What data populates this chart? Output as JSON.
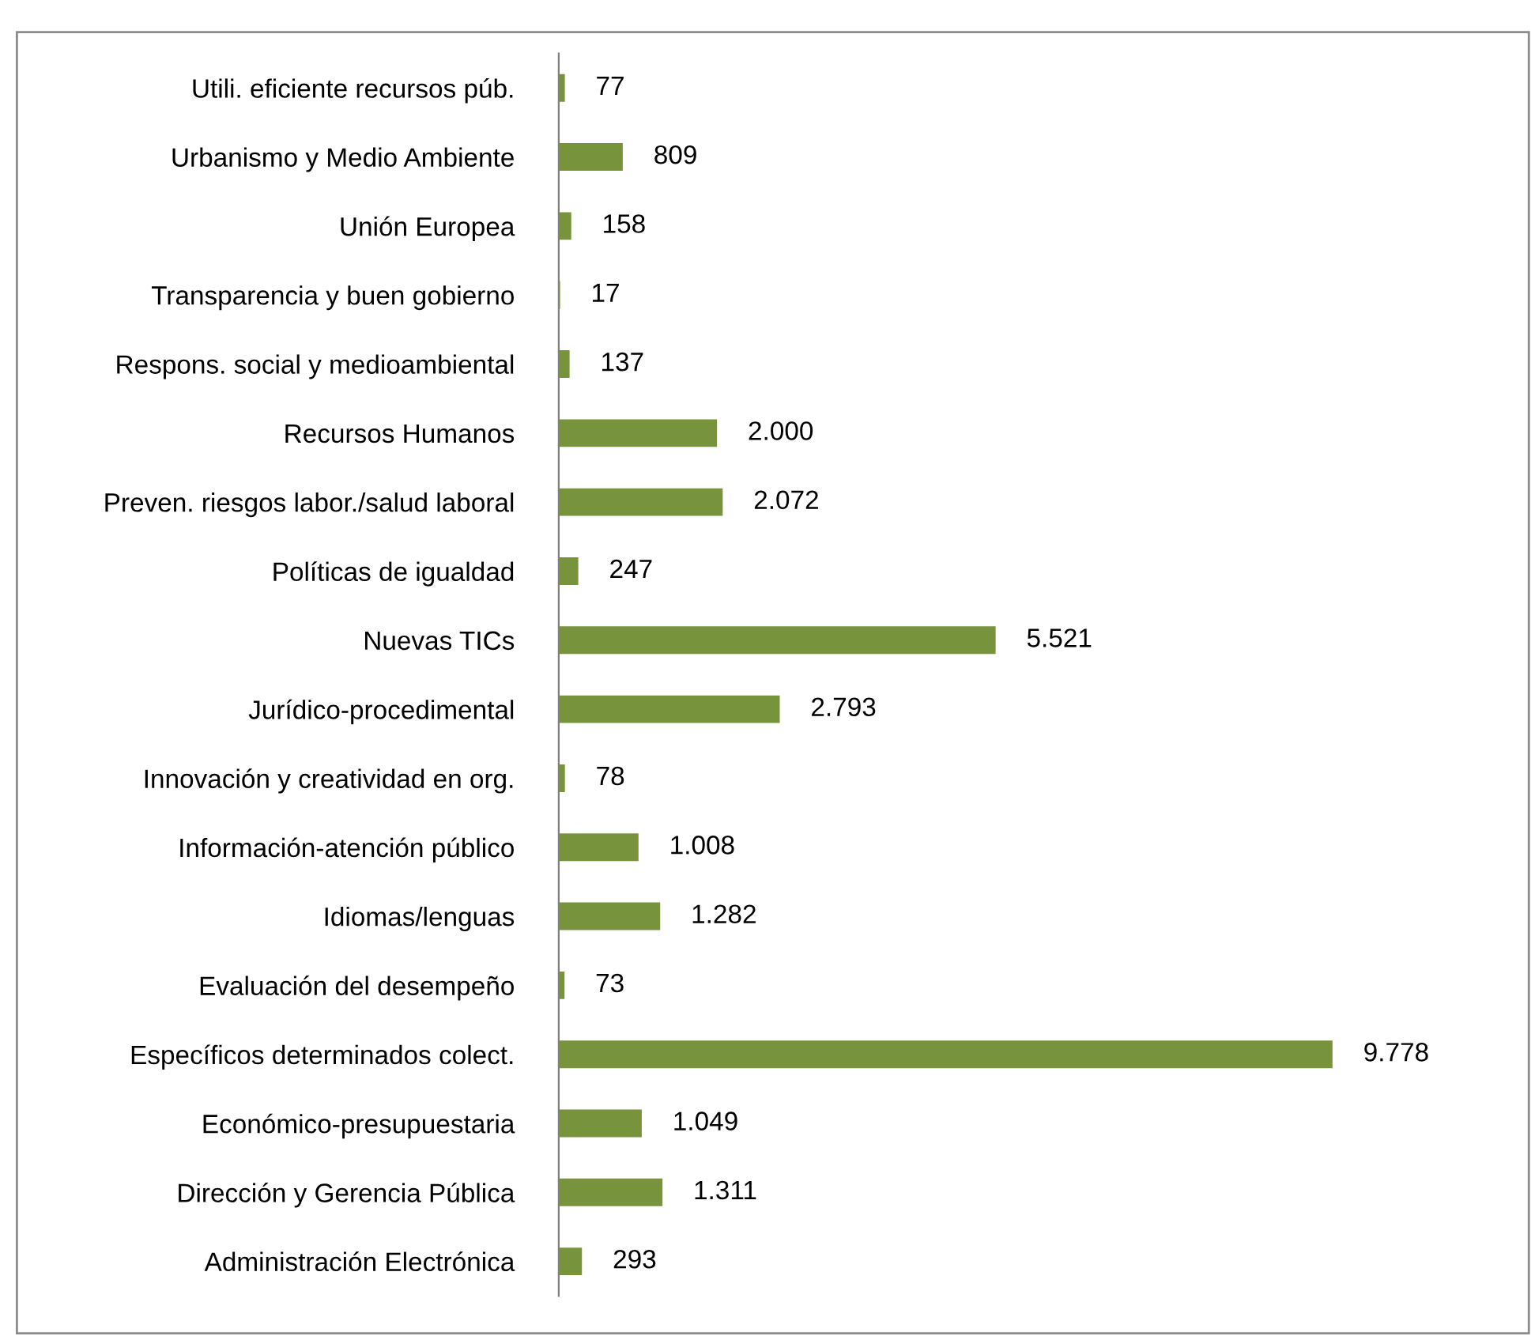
{
  "chart_data": {
    "type": "bar",
    "orientation": "horizontal",
    "categories": [
      "Utili. eficiente recursos púb.",
      "Urbanismo y Medio Ambiente",
      "Unión Europea",
      "Transparencia y buen gobierno",
      "Respons. social y medioambiental",
      "Recursos Humanos",
      "Preven. riesgos labor./salud laboral",
      "Políticas de igualdad",
      "Nuevas TICs",
      "Jurídico-procedimental",
      "Innovación y creatividad en org.",
      "Información-atención público",
      "Idiomas/lenguas",
      "Evaluación del desempeño",
      "Específicos determinados colect.",
      "Económico-presupuestaria",
      "Dirección y Gerencia Pública",
      "Administración Electrónica"
    ],
    "values": [
      77,
      809,
      158,
      17,
      137,
      2000,
      2072,
      247,
      5521,
      2793,
      78,
      1008,
      1282,
      73,
      9778,
      1049,
      1311,
      293
    ],
    "value_labels": [
      "77",
      "809",
      "158",
      "17",
      "137",
      "2.000",
      "2.072",
      "247",
      "5.521",
      "2.793",
      "78",
      "1.008",
      "1.282",
      "73",
      "9.778",
      "1.049",
      "1.311",
      "293"
    ],
    "color": "#77933c",
    "grid": false,
    "legend": false,
    "tick_labels": "y"
  }
}
